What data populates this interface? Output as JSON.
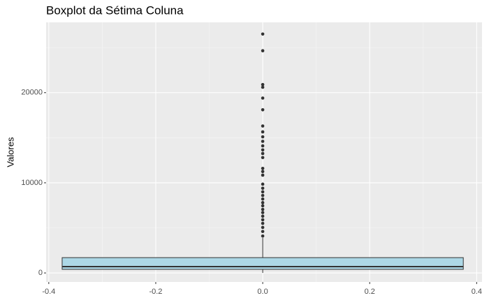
{
  "chart_data": {
    "type": "box",
    "title": "Boxplot da Sétima Coluna",
    "y_label": "Valores",
    "box": {
      "x": 0,
      "x_left": -0.375,
      "x_right": 0.375,
      "min": 0,
      "q1": 400,
      "median": 700,
      "q3": 1700,
      "max": 3900,
      "outliers": [
        26500,
        24650,
        20900,
        20600,
        19400,
        18100,
        16300,
        15650,
        15100,
        14600,
        14100,
        13650,
        13250,
        12800,
        11600,
        11250,
        10850,
        9850,
        9400,
        9000,
        8600,
        8200,
        7800,
        7450,
        7050,
        6700,
        6300,
        5900,
        5500,
        5050,
        4600,
        4100
      ],
      "color": "#add8e6"
    },
    "xlim": [
      -0.405,
      0.41
    ],
    "xticks": [
      -0.4,
      -0.2,
      {
        "value": 0,
        "label": "0.0"
      },
      0.2,
      0.4
    ],
    "ylim": [
      -1000,
      27800
    ],
    "yticks": [
      0,
      10000,
      20000
    ],
    "grid": true
  }
}
